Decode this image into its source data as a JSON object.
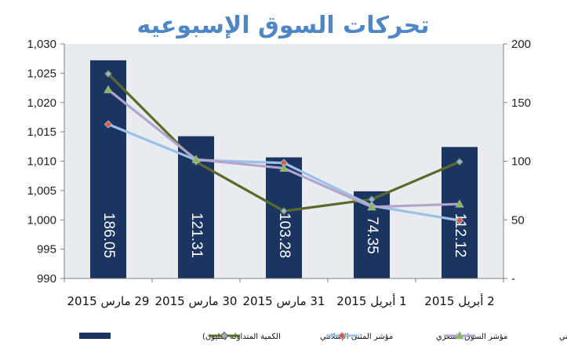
{
  "chart_data": {
    "type": "bar",
    "title": "تحركات السوق الإسبوعيه",
    "categories": [
      "29 مارس 2015",
      "30 مارس 2015",
      "31 مارس 2015",
      "1 أبريل 2015",
      "2 أبريل 2015"
    ],
    "left_axis": {
      "ylim": [
        990,
        1030
      ],
      "ticks": [
        "990",
        "995",
        "1,000",
        "1,005",
        "1,010",
        "1,015",
        "1,020",
        "1,025",
        "1,030"
      ]
    },
    "right_axis": {
      "ylim": [
        0,
        200
      ],
      "ticks": [
        "-",
        "50",
        "100",
        "150",
        "200"
      ]
    },
    "bar_series": {
      "name": "الكمية المتداوله (مليون)",
      "color": "#1b3560",
      "axis": "right",
      "values": [
        186.05,
        121.31,
        103.28,
        74.35,
        112.12
      ],
      "labels": [
        "186.05",
        "121.31",
        "103.28",
        "74.35",
        "112.12"
      ]
    },
    "line_series": [
      {
        "name": "مؤشر المثنى الإسلامي",
        "color": "#5a6a2a",
        "marker": "diamond",
        "marker_color": "#8fb4e3",
        "values": [
          1024.9,
          1009.9,
          1001.5,
          1003.5,
          1009.9
        ]
      },
      {
        "name": "مؤشر السوق السعري",
        "color": "#9dc0e6",
        "marker": "diamond",
        "marker_color": "#e05a3a",
        "values": [
          1016.3,
          1010.2,
          1009.7,
          1002.4,
          999.9
        ]
      },
      {
        "name": "مؤشر السوق الوزني",
        "color": "#b3a4cc",
        "marker": "triangle",
        "marker_color": "#7fc242",
        "values": [
          1022.2,
          1010.3,
          1008.8,
          1002.2,
          1002.7
        ]
      }
    ],
    "grid": false,
    "legend_position": "bottom",
    "background": "#e8ecef"
  }
}
